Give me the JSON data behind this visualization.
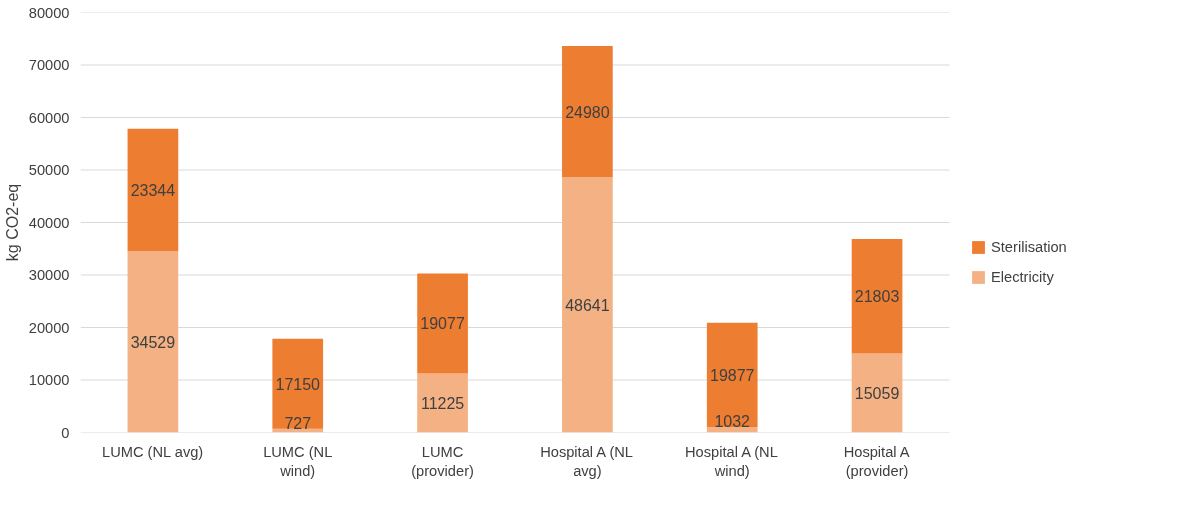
{
  "chart_data": {
    "type": "bar",
    "stacked": true,
    "ylabel": "kg CO2-eq",
    "categories": [
      "LUMC (NL avg)",
      "LUMC (NL\nwind)",
      "LUMC\n(provider)",
      "Hospital A (NL\navg)",
      "Hospital A (NL\nwind)",
      "Hospital A\n(provider)"
    ],
    "series": [
      {
        "name": "Electricity",
        "color": "#f4b183",
        "values": [
          34529,
          727,
          11225,
          48641,
          1032,
          15059
        ]
      },
      {
        "name": "Sterilisation",
        "color": "#ed7d31",
        "values": [
          23344,
          17150,
          19077,
          24980,
          19877,
          21803
        ]
      }
    ],
    "ylim": [
      0,
      80000
    ],
    "yticks": [
      0,
      10000,
      20000,
      30000,
      40000,
      50000,
      60000,
      70000,
      80000
    ],
    "grid": "y",
    "legend": "right",
    "data_labels": true
  }
}
